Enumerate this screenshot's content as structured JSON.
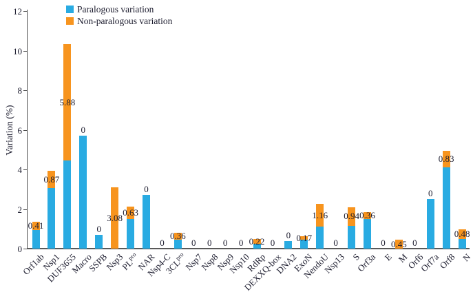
{
  "chart_data": {
    "type": "bar",
    "stacked": true,
    "title": "",
    "xlabel": "",
    "ylabel": "Variation (%)",
    "ylim": [
      0,
      12
    ],
    "yticks": [
      0,
      2,
      4,
      6,
      8,
      10,
      12
    ],
    "grid": false,
    "legend_position": "top-left",
    "categories": [
      "Orf1ab",
      "Nsp1",
      "DUF3655",
      "Macro",
      "SSPB",
      "Nsp3",
      "PL^pro",
      "NAR",
      "Nsp4-C",
      "3CL^pro",
      "Nsp7",
      "Nsp8",
      "Nsp9",
      "Nsp10",
      "RdRp",
      "DEXXQ-box",
      "DNA2",
      "ExoN",
      "NendoU",
      "Nsp13",
      "S",
      "Orf3a",
      "E",
      "M",
      "Orf6",
      "Orf7a",
      "Orf8",
      "N"
    ],
    "series": [
      {
        "name": "Paralogous variation",
        "color": "#29abe2",
        "values": [
          0.95,
          3.05,
          4.45,
          5.7,
          0.7,
          0,
          1.5,
          2.7,
          0,
          0.45,
          0,
          0,
          0,
          0,
          0.25,
          0,
          0.4,
          0.45,
          1.1,
          0,
          1.15,
          1.5,
          0,
          0,
          0,
          2.5,
          4.1,
          0.5
        ]
      },
      {
        "name": "Non-paralogous variation",
        "color": "#f7941e",
        "values": [
          0.41,
          0.87,
          5.88,
          0,
          0,
          3.08,
          0.63,
          0,
          0,
          0.36,
          0,
          0,
          0,
          0,
          0.22,
          0,
          0,
          0.17,
          1.16,
          0,
          0.94,
          0.36,
          0,
          0.45,
          0,
          0,
          0.83,
          0.48
        ]
      }
    ],
    "bar_labels": [
      "0.41",
      "0.87",
      "5.88",
      "0",
      "0",
      "3.08",
      "0.63",
      "0",
      "0",
      "0.36",
      "0",
      "0",
      "0",
      "0",
      "0.22",
      "0",
      "0",
      "0.17",
      "1.16",
      "0",
      "0.94",
      "0.36",
      "0",
      "0.45",
      "0",
      "0",
      "0.83",
      "0.48"
    ],
    "colors": {
      "paralogous": "#29abe2",
      "non_paralogous": "#f7941e",
      "axis": "#4d4d4d",
      "baseline": "#595959",
      "text": "#1c1c2e"
    }
  }
}
